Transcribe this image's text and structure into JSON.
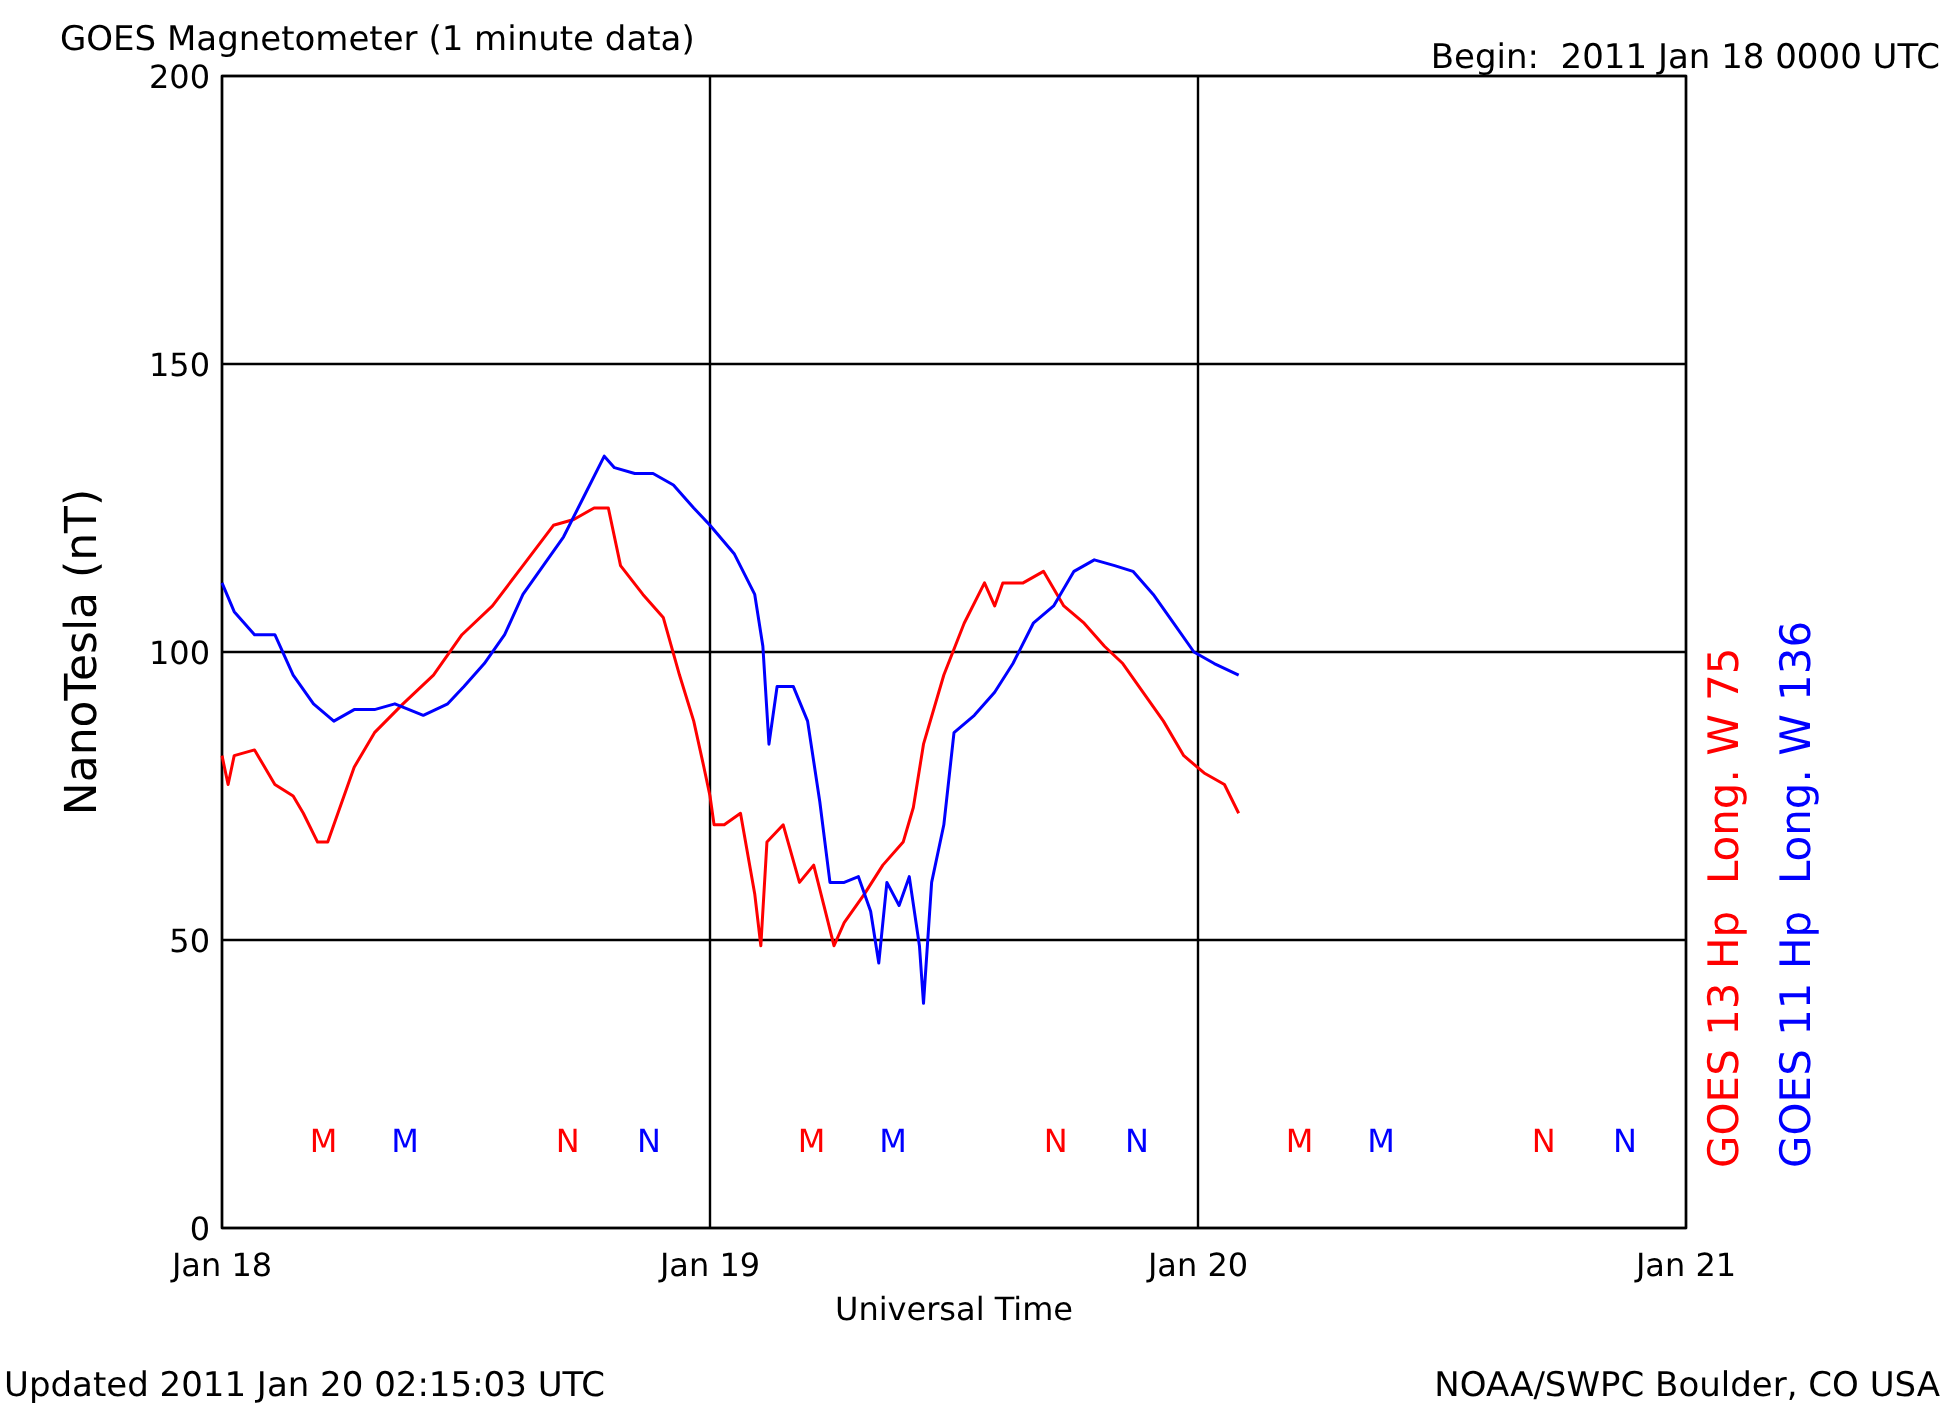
{
  "chart_data": {
    "type": "line",
    "title": "GOES Magnetometer (1 minute data)",
    "subtitle": "Begin:  2011 Jan 18 0000 UTC",
    "xlabel": "Universal Time",
    "ylabel": "NanoTesla (nT)",
    "xlim": [
      "2011-01-18",
      "2011-01-21"
    ],
    "xticks": [
      {
        "value": "2011-01-18",
        "label": "Jan 18"
      },
      {
        "value": "2011-01-19",
        "label": "Jan 19"
      },
      {
        "value": "2011-01-20",
        "label": "Jan 20"
      },
      {
        "value": "2011-01-21",
        "label": "Jan 21"
      }
    ],
    "ylim": [
      0,
      200
    ],
    "yticks": [
      0,
      50,
      100,
      150,
      200
    ],
    "grid": true,
    "legend": "right",
    "series": [
      {
        "name": "GOES 13 Hp  Long. W 75",
        "color": "#ff0000",
        "x": [
          "2011-01-18T00:00",
          "2011-01-18T00:18",
          "2011-01-18T00:36",
          "2011-01-18T01:36",
          "2011-01-18T02:36",
          "2011-01-18T03:30",
          "2011-01-18T04:00",
          "2011-01-18T04:42",
          "2011-01-18T05:12",
          "2011-01-18T05:30",
          "2011-01-18T06:30",
          "2011-01-18T07:30",
          "2011-01-18T08:54",
          "2011-01-18T10:24",
          "2011-01-18T11:48",
          "2011-01-18T13:18",
          "2011-01-18T14:48",
          "2011-01-18T16:18",
          "2011-01-18T17:18",
          "2011-01-18T18:18",
          "2011-01-18T19:00",
          "2011-01-18T19:36",
          "2011-01-18T20:42",
          "2011-01-18T21:42",
          "2011-01-18T22:30",
          "2011-01-18T23:12",
          "2011-01-18T23:42",
          "2011-01-19T00:00",
          "2011-01-19T00:12",
          "2011-01-19T00:42",
          "2011-01-19T01:30",
          "2011-01-19T02:12",
          "2011-01-19T02:30",
          "2011-01-19T02:48",
          "2011-01-19T03:36",
          "2011-01-19T04:24",
          "2011-01-19T05:06",
          "2011-01-19T05:36",
          "2011-01-19T06:06",
          "2011-01-19T06:36",
          "2011-01-19T07:36",
          "2011-01-19T08:30",
          "2011-01-19T09:30",
          "2011-01-19T10:00",
          "2011-01-19T10:30",
          "2011-01-19T11:30",
          "2011-01-19T12:30",
          "2011-01-19T13:30",
          "2011-01-19T14:00",
          "2011-01-19T14:24",
          "2011-01-19T15:24",
          "2011-01-19T16:24",
          "2011-01-19T17:24",
          "2011-01-19T18:24",
          "2011-01-19T19:24",
          "2011-01-19T20:18",
          "2011-01-19T21:18",
          "2011-01-19T22:18",
          "2011-01-19T23:18",
          "2011-01-20T00:18",
          "2011-01-20T01:18",
          "2011-01-20T02:00"
        ],
        "values": [
          82,
          77,
          82,
          83,
          77,
          75,
          72,
          67,
          67,
          70,
          80,
          86,
          91,
          96,
          103,
          108,
          115,
          122,
          123,
          125,
          125,
          115,
          110,
          106,
          96,
          88,
          80,
          75,
          70,
          70,
          72,
          58,
          49,
          67,
          70,
          60,
          63,
          56,
          49,
          53,
          58,
          63,
          67,
          73,
          84,
          96,
          105,
          112,
          108,
          112,
          112,
          114,
          108,
          105,
          101,
          98,
          93,
          88,
          82,
          79,
          77,
          72
        ]
      },
      {
        "name": "GOES 11 Hp  Long. W 136",
        "color": "#0000ff",
        "x": [
          "2011-01-18T00:00",
          "2011-01-18T00:36",
          "2011-01-18T01:36",
          "2011-01-18T02:36",
          "2011-01-18T03:30",
          "2011-01-18T04:30",
          "2011-01-18T05:30",
          "2011-01-18T06:30",
          "2011-01-18T07:30",
          "2011-01-18T08:30",
          "2011-01-18T09:54",
          "2011-01-18T11:06",
          "2011-01-18T11:54",
          "2011-01-18T12:54",
          "2011-01-18T13:54",
          "2011-01-18T14:48",
          "2011-01-18T15:48",
          "2011-01-18T16:48",
          "2011-01-18T17:48",
          "2011-01-18T18:48",
          "2011-01-18T19:18",
          "2011-01-18T20:18",
          "2011-01-18T21:12",
          "2011-01-18T22:12",
          "2011-01-18T23:12",
          "2011-01-19T00:00",
          "2011-01-19T01:12",
          "2011-01-19T02:12",
          "2011-01-19T02:36",
          "2011-01-19T02:54",
          "2011-01-19T03:18",
          "2011-01-19T04:06",
          "2011-01-19T04:48",
          "2011-01-19T05:24",
          "2011-01-19T05:54",
          "2011-01-19T06:36",
          "2011-01-19T07:18",
          "2011-01-19T07:54",
          "2011-01-19T08:18",
          "2011-01-19T08:42",
          "2011-01-19T09:18",
          "2011-01-19T09:48",
          "2011-01-19T10:18",
          "2011-01-19T10:30",
          "2011-01-19T10:54",
          "2011-01-19T11:30",
          "2011-01-19T12:00",
          "2011-01-19T13:00",
          "2011-01-19T14:00",
          "2011-01-19T14:54",
          "2011-01-19T15:54",
          "2011-01-19T16:54",
          "2011-01-19T17:54",
          "2011-01-19T18:54",
          "2011-01-19T19:54",
          "2011-01-19T20:48",
          "2011-01-19T21:48",
          "2011-01-19T22:48",
          "2011-01-19T23:48",
          "2011-01-20T00:48",
          "2011-01-20T02:00"
        ],
        "values": [
          112,
          107,
          103,
          103,
          96,
          91,
          88,
          90,
          90,
          91,
          89,
          91,
          94,
          98,
          103,
          110,
          115,
          120,
          127,
          134,
          132,
          131,
          131,
          129,
          125,
          122,
          117,
          110,
          101,
          84,
          94,
          94,
          88,
          74,
          60,
          60,
          61,
          55,
          46,
          60,
          56,
          61,
          49,
          39,
          60,
          70,
          86,
          89,
          93,
          98,
          105,
          108,
          114,
          116,
          115,
          114,
          110,
          105,
          100,
          98,
          96
        ]
      }
    ],
    "annotations": [
      "M",
      "M",
      "N",
      "N",
      "M",
      "M",
      "N",
      "N",
      "M",
      "M",
      "N",
      "N",
      "Updated 2011 Jan 20 02:15:03 UTC",
      "NOAA/SWPC Boulder, CO USA"
    ]
  }
}
